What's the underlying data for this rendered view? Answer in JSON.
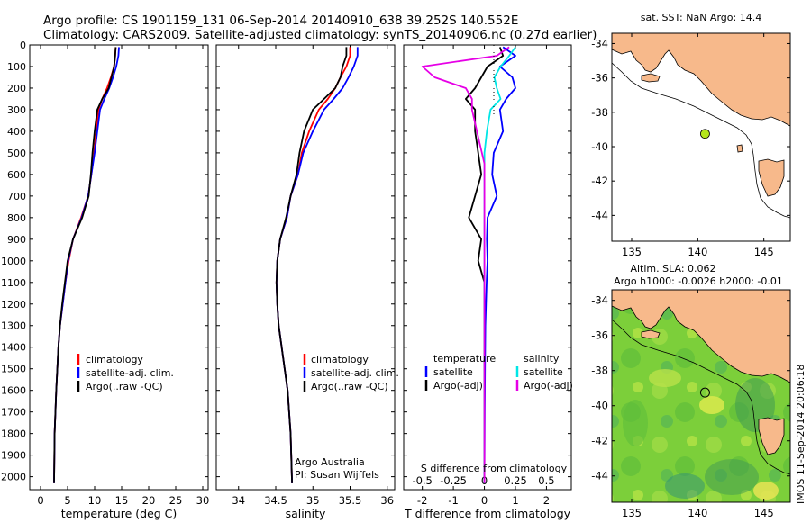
{
  "header": {
    "title_line1": "Argo profile: CS 1901159_131 06-Sep-2014 20140910_638 39.252S 140.552E",
    "title_line2": "Climatology: CARS2009. Satellite-adjusted climatology: synTS_20140906.nc (0.27d earlier)"
  },
  "colors": {
    "climatology": "#ff0000",
    "satellite": "#0000ff",
    "argo": "#000000",
    "sal_satellite": "#00e6e6",
    "sal_argo": "#e600e6",
    "land": "#f7b98b",
    "sea_bg": "#ffffff"
  },
  "chart_data": [
    {
      "type": "line",
      "name": "temperature",
      "xlabel": "temperature (deg C)",
      "ylabel": "",
      "xlim": [
        -2,
        31
      ],
      "ylim": [
        2060,
        0
      ],
      "xticks": [
        0,
        5,
        10,
        15,
        20,
        25,
        30
      ],
      "yticks": [
        0,
        100,
        200,
        300,
        400,
        500,
        600,
        700,
        800,
        900,
        1000,
        1100,
        1200,
        1300,
        1400,
        1500,
        1600,
        1700,
        1800,
        1900,
        2000
      ],
      "legend": [
        "climatology",
        "satellite-adj. clim.",
        "Argo(..raw -QC)"
      ],
      "series": [
        {
          "name": "climatology",
          "color": "#ff0000",
          "x": [
            13.9,
            13.8,
            13.6,
            13.0,
            12.3,
            11.4,
            10.7,
            10.3,
            9.9,
            9.4,
            8.8,
            7.5,
            6.0,
            5.2,
            4.6,
            4.1,
            3.6,
            3.3,
            3.1,
            2.9,
            2.6,
            2.5
          ],
          "y": [
            10,
            50,
            100,
            150,
            200,
            250,
            300,
            400,
            500,
            600,
            700,
            800,
            900,
            1000,
            1100,
            1200,
            1300,
            1400,
            1500,
            1600,
            1800,
            2030
          ]
        },
        {
          "name": "satellite-adj. clim.",
          "color": "#0000ff",
          "x": [
            14.5,
            14.4,
            14.0,
            13.4,
            12.7,
            11.8,
            11.0,
            10.5,
            10.0,
            9.4,
            8.8,
            7.6,
            6.0,
            5.1,
            4.6,
            4.1,
            3.6,
            3.3,
            3.1,
            2.9,
            2.6,
            2.5
          ],
          "y": [
            10,
            50,
            100,
            150,
            200,
            250,
            300,
            400,
            500,
            600,
            700,
            800,
            900,
            1000,
            1100,
            1200,
            1300,
            1400,
            1500,
            1600,
            1800,
            2030
          ]
        },
        {
          "name": "Argo(..raw -QC)",
          "color": "#000000",
          "x": [
            13.9,
            13.8,
            13.6,
            13.1,
            12.6,
            11.4,
            10.5,
            10.0,
            9.6,
            9.3,
            8.9,
            7.7,
            6.0,
            5.0,
            4.5,
            4.0,
            3.6,
            3.3,
            3.1,
            2.9,
            2.6,
            2.5
          ],
          "y": [
            10,
            50,
            100,
            150,
            200,
            250,
            300,
            400,
            500,
            600,
            700,
            800,
            900,
            1000,
            1100,
            1200,
            1300,
            1400,
            1500,
            1600,
            1800,
            2030
          ]
        }
      ]
    },
    {
      "type": "line",
      "name": "salinity",
      "xlabel": "salinity",
      "xlim": [
        33.7,
        36.1
      ],
      "ylim": [
        2060,
        0
      ],
      "xticks": [
        34,
        34.5,
        35,
        35.5,
        36
      ],
      "legend": [
        "climatology",
        "satellite-adj. clim.",
        "Argo(..raw -QC)"
      ],
      "annotation": [
        "Argo Australia",
        "PI: Susan Wijffels"
      ],
      "series": [
        {
          "name": "climatology",
          "color": "#ff0000",
          "x": [
            35.5,
            35.5,
            35.45,
            35.37,
            35.3,
            35.2,
            35.08,
            34.95,
            34.85,
            34.8,
            34.7,
            34.65,
            34.56,
            34.52,
            34.51,
            34.52,
            34.54,
            34.58,
            34.62,
            34.66,
            34.7,
            34.72
          ],
          "y": [
            10,
            50,
            100,
            150,
            200,
            250,
            300,
            400,
            500,
            600,
            700,
            800,
            900,
            1000,
            1100,
            1200,
            1300,
            1400,
            1500,
            1600,
            1800,
            2030
          ]
        },
        {
          "name": "satellite-adj. clim.",
          "color": "#0000ff",
          "x": [
            35.6,
            35.6,
            35.55,
            35.48,
            35.4,
            35.28,
            35.15,
            35.0,
            34.87,
            34.8,
            34.7,
            34.65,
            34.56,
            34.52,
            34.51,
            34.52,
            34.54,
            34.58,
            34.62,
            34.66,
            34.7,
            34.72
          ],
          "y": [
            10,
            50,
            100,
            150,
            200,
            250,
            300,
            400,
            500,
            600,
            700,
            800,
            900,
            1000,
            1100,
            1200,
            1300,
            1400,
            1500,
            1600,
            1800,
            2030
          ]
        },
        {
          "name": "Argo(..raw -QC)",
          "color": "#000000",
          "x": [
            35.45,
            35.45,
            35.4,
            35.37,
            35.3,
            35.15,
            35.0,
            34.88,
            34.82,
            34.78,
            34.7,
            34.64,
            34.56,
            34.52,
            34.51,
            34.52,
            34.54,
            34.58,
            34.62,
            34.66,
            34.7,
            34.72
          ],
          "y": [
            10,
            50,
            100,
            150,
            200,
            250,
            300,
            400,
            500,
            600,
            700,
            800,
            900,
            1000,
            1100,
            1200,
            1300,
            1400,
            1500,
            1600,
            1800,
            2030
          ]
        }
      ]
    },
    {
      "type": "line",
      "name": "differences",
      "xlabel": "T difference from climatology",
      "xlabel_top": "S difference from climatology",
      "xlim": [
        -2.6,
        2.8
      ],
      "ylim": [
        2060,
        0
      ],
      "xticks": [
        -2,
        -1,
        0,
        1,
        2
      ],
      "xticks_S": [
        -0.5,
        -0.25,
        0,
        0.25,
        0.5
      ],
      "legend": {
        "temperature": [
          "satellite",
          "Argo(-adj)"
        ],
        "salinity": [
          "satellite",
          "Argo(-adj)"
        ]
      },
      "legend_headings": [
        "temperature",
        "salinity"
      ],
      "series": [
        {
          "name": "temperature satellite",
          "color": "#0000ff",
          "x": [
            0.6,
            1.0,
            0.5,
            0.9,
            1.0,
            0.7,
            0.5,
            0.6,
            0.3,
            0.25,
            0.4,
            0.1,
            0.08,
            0.1,
            0.07,
            0.05,
            0.03,
            0.02,
            0.01,
            0.0
          ],
          "y": [
            10,
            50,
            100,
            150,
            200,
            250,
            300,
            400,
            500,
            600,
            700,
            800,
            900,
            1000,
            1100,
            1200,
            1300,
            1500,
            1700,
            2030
          ]
        },
        {
          "name": "temperature Argo(-adj)",
          "color": "#000000",
          "x": [
            0.5,
            0.6,
            0.1,
            -0.1,
            -0.3,
            -0.6,
            -0.3,
            -0.3,
            -0.2,
            -0.1,
            -0.3,
            -0.5,
            -0.1,
            -0.2,
            0.0,
            0.0,
            0.0,
            0.0,
            0.0,
            0.0
          ],
          "y": [
            10,
            50,
            100,
            150,
            200,
            250,
            300,
            400,
            500,
            600,
            700,
            800,
            900,
            1000,
            1100,
            1200,
            1300,
            1500,
            1700,
            2030
          ]
        },
        {
          "name": "salinity satellite",
          "color": "#00e6e6",
          "x": [
            0.25,
            0.2,
            0.13,
            0.08,
            0.1,
            0.13,
            0.05,
            0.02,
            0.0,
            0.0,
            0.0,
            0.0,
            0.0,
            0.0,
            0.0,
            0.0,
            0.0,
            0.0
          ],
          "y": [
            10,
            50,
            100,
            150,
            200,
            250,
            300,
            400,
            500,
            600,
            700,
            800,
            900,
            1000,
            1200,
            1500,
            1700,
            2030
          ]
        },
        {
          "name": "salinity Argo(-adj)",
          "color": "#e600e6",
          "x": [
            0.2,
            0.1,
            -0.5,
            -0.4,
            -0.15,
            -0.1,
            -0.1,
            -0.04,
            0.0,
            0.0,
            0.0,
            0.0,
            0.0,
            0.0,
            0.0,
            0.0
          ],
          "y": [
            10,
            50,
            100,
            150,
            200,
            250,
            300,
            450,
            550,
            700,
            900,
            1100,
            1300,
            1500,
            1700,
            2030
          ]
        }
      ]
    }
  ],
  "maps": {
    "top": {
      "title": "sat. SST: NaN Argo: 14.4",
      "lon_ticks": [
        135,
        140,
        145
      ],
      "lat_ticks": [
        -34,
        -36,
        -38,
        -40,
        -42,
        -44
      ],
      "xlim": [
        133.5,
        147
      ],
      "ylim": [
        -45.5,
        -33.4
      ],
      "argo_position": {
        "lon": 140.552,
        "lat": -39.252
      },
      "marker_color": "#b5e61d"
    },
    "bottom": {
      "title_line1": "Altim. SLA: 0.062",
      "title_line2": "Argo h1000: -0.0026 h2000: -0.01",
      "lon_ticks": [
        135,
        140,
        145
      ],
      "lat_ticks": [
        -34,
        -36,
        -38,
        -40,
        -42,
        -44
      ],
      "xlim": [
        133.5,
        147
      ],
      "ylim": [
        -45.5,
        -33.4
      ],
      "argo_position": {
        "lon": 140.552,
        "lat": -39.252
      },
      "sea_color": "#7ccf3a"
    }
  },
  "footer": {
    "credit": "IMOS 11-Sep-2014 20:06:18"
  }
}
